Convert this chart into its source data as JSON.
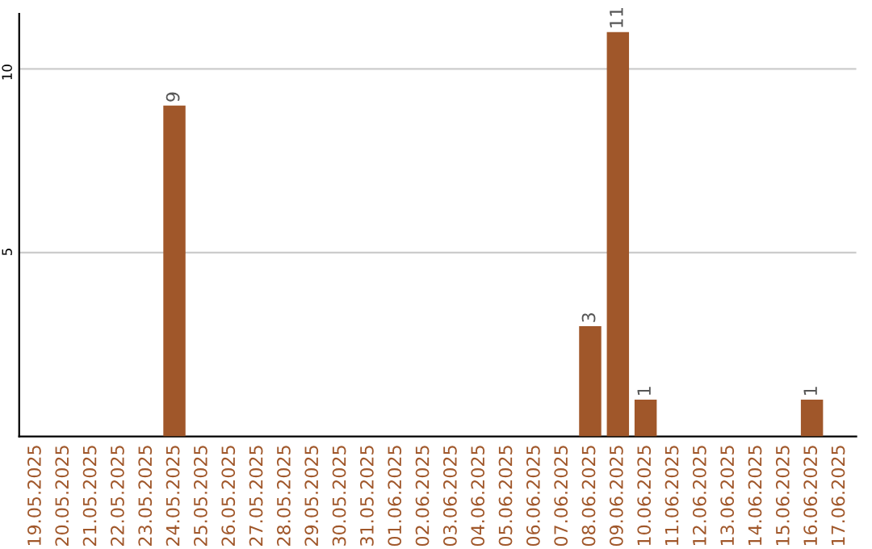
{
  "chart_data": {
    "type": "bar",
    "categories": [
      "19.05.2025",
      "20.05.2025",
      "21.05.2025",
      "22.05.2025",
      "23.05.2025",
      "24.05.2025",
      "25.05.2025",
      "26.05.2025",
      "27.05.2025",
      "28.05.2025",
      "29.05.2025",
      "30.05.2025",
      "31.05.2025",
      "01.06.2025",
      "02.06.2025",
      "03.06.2025",
      "04.06.2025",
      "05.06.2025",
      "06.06.2025",
      "07.06.2025",
      "08.06.2025",
      "09.06.2025",
      "10.06.2025",
      "11.06.2025",
      "12.06.2025",
      "13.06.2025",
      "14.06.2025",
      "15.06.2025",
      "16.06.2025",
      "17.06.2025"
    ],
    "values": [
      0,
      0,
      0,
      0,
      0,
      9,
      0,
      0,
      0,
      0,
      0,
      0,
      0,
      0,
      0,
      0,
      0,
      0,
      0,
      0,
      3,
      11,
      1,
      0,
      0,
      0,
      0,
      0,
      1,
      0
    ],
    "value_labels": [
      null,
      null,
      null,
      null,
      null,
      "9",
      null,
      null,
      null,
      null,
      null,
      null,
      null,
      null,
      null,
      null,
      null,
      null,
      null,
      null,
      "3",
      "11",
      "1",
      null,
      null,
      null,
      null,
      null,
      "1",
      null
    ],
    "color": "#a0572a",
    "ylim": [
      0,
      11.5
    ],
    "yticks": [
      5,
      10
    ],
    "grid": "y"
  }
}
